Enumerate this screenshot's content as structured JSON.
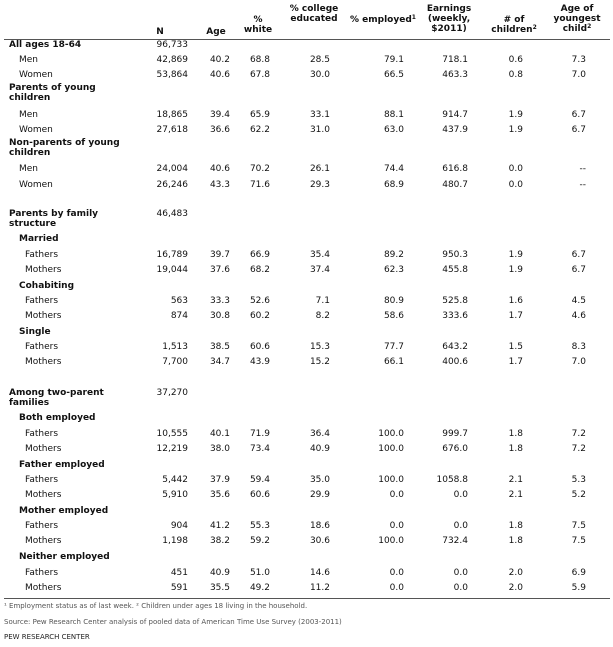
{
  "headers": {
    "n": "N",
    "age": "Age",
    "white": "% white",
    "college": "% college educated",
    "employed": "% employed",
    "employed_sup": "1",
    "earnings": "Earnings (weekly, $2011)",
    "children": "# of children",
    "children_sup": "2",
    "youngest": "Age of youngest child",
    "youngest_sup": "2"
  },
  "rows": [
    {
      "label": "All ages 18-64",
      "bold": true,
      "indent": 0,
      "n": "96,733"
    },
    {
      "label": "Men",
      "bold": false,
      "indent": 1,
      "n": "42,869",
      "age": "40.2",
      "white": "68.8",
      "college": "28.5",
      "employed": "79.1",
      "earnings": "718.1",
      "children": "0.6",
      "youngest": "7.3"
    },
    {
      "label": "Women",
      "bold": false,
      "indent": 1,
      "n": "53,864",
      "age": "40.6",
      "white": "67.8",
      "college": "30.0",
      "employed": "66.5",
      "earnings": "463.3",
      "children": "0.8",
      "youngest": "7.0"
    },
    {
      "label": "Parents of young children",
      "bold": true,
      "indent": 0
    },
    {
      "label": "Men",
      "bold": false,
      "indent": 1,
      "n": "18,865",
      "age": "39.4",
      "white": "65.9",
      "college": "33.1",
      "employed": "88.1",
      "earnings": "914.7",
      "children": "1.9",
      "youngest": "6.7"
    },
    {
      "label": "Women",
      "bold": false,
      "indent": 1,
      "n": "27,618",
      "age": "36.6",
      "white": "62.2",
      "college": "31.0",
      "employed": "63.0",
      "earnings": "437.9",
      "children": "1.9",
      "youngest": "6.7"
    },
    {
      "label": "Non-parents of young children",
      "bold": true,
      "indent": 0
    },
    {
      "label": "Men",
      "bold": false,
      "indent": 1,
      "n": "24,004",
      "age": "40.6",
      "white": "70.2",
      "college": "26.1",
      "employed": "74.4",
      "earnings": "616.8",
      "children": "0.0",
      "youngest": "--"
    },
    {
      "label": "Women",
      "bold": false,
      "indent": 1,
      "n": "26,246",
      "age": "43.3",
      "white": "71.6",
      "college": "29.3",
      "employed": "68.9",
      "earnings": "480.7",
      "children": "0.0",
      "youngest": "--"
    },
    {
      "label": "Parents by family structure",
      "bold": true,
      "indent": 0,
      "n": "46,483"
    },
    {
      "label": "Married",
      "bold": true,
      "indent": 1
    },
    {
      "label": "Fathers",
      "bold": false,
      "indent": 2,
      "n": "16,789",
      "age": "39.7",
      "white": "66.9",
      "college": "35.4",
      "employed": "89.2",
      "earnings": "950.3",
      "children": "1.9",
      "youngest": "6.7"
    },
    {
      "label": "Mothers",
      "bold": false,
      "indent": 2,
      "n": "19,044",
      "age": "37.6",
      "white": "68.2",
      "college": "37.4",
      "employed": "62.3",
      "earnings": "455.8",
      "children": "1.9",
      "youngest": "6.7"
    },
    {
      "label": "Cohabiting",
      "bold": true,
      "indent": 1
    },
    {
      "label": "Fathers",
      "bold": false,
      "indent": 2,
      "n": "563",
      "age": "33.3",
      "white": "52.6",
      "college": "7.1",
      "employed": "80.9",
      "earnings": "525.8",
      "children": "1.6",
      "youngest": "4.5"
    },
    {
      "label": "Mothers",
      "bold": false,
      "indent": 2,
      "n": "874",
      "age": "30.8",
      "white": "60.2",
      "college": "8.2",
      "employed": "58.6",
      "earnings": "333.6",
      "children": "1.7",
      "youngest": "4.6"
    },
    {
      "label": "Single",
      "bold": true,
      "indent": 1
    },
    {
      "label": "Fathers",
      "bold": false,
      "indent": 2,
      "n": "1,513",
      "age": "38.5",
      "white": "60.6",
      "college": "15.3",
      "employed": "77.7",
      "earnings": "643.2",
      "children": "1.5",
      "youngest": "8.3"
    },
    {
      "label": "Mothers",
      "bold": false,
      "indent": 2,
      "n": "7,700",
      "age": "34.7",
      "white": "43.9",
      "college": "15.2",
      "employed": "66.1",
      "earnings": "400.6",
      "children": "1.7",
      "youngest": "7.0"
    },
    {
      "label": "Among two-parent families",
      "bold": true,
      "indent": 0,
      "n": "37,270"
    },
    {
      "label": "Both employed",
      "bold": true,
      "indent": 1
    },
    {
      "label": "Fathers",
      "bold": false,
      "indent": 2,
      "n": "10,555",
      "age": "40.1",
      "white": "71.9",
      "college": "36.4",
      "employed": "100.0",
      "earnings": "999.7",
      "children": "1.8",
      "youngest": "7.2"
    },
    {
      "label": "Mothers",
      "bold": false,
      "indent": 2,
      "n": "12,219",
      "age": "38.0",
      "white": "73.4",
      "college": "40.9",
      "employed": "100.0",
      "earnings": "676.0",
      "children": "1.8",
      "youngest": "7.2"
    },
    {
      "label": "Father employed",
      "bold": true,
      "indent": 1
    },
    {
      "label": "Fathers",
      "bold": false,
      "indent": 2,
      "n": "5,442",
      "age": "37.9",
      "white": "59.4",
      "college": "35.0",
      "employed": "100.0",
      "earnings": "1058.8",
      "children": "2.1",
      "youngest": "5.3"
    },
    {
      "label": "Mothers",
      "bold": false,
      "indent": 2,
      "n": "5,910",
      "age": "35.6",
      "white": "60.6",
      "college": "29.9",
      "employed": "0.0",
      "earnings": "0.0",
      "children": "2.1",
      "youngest": "5.2"
    },
    {
      "label": "Mother employed",
      "bold": true,
      "indent": 1
    },
    {
      "label": "Fathers",
      "bold": false,
      "indent": 2,
      "n": "904",
      "age": "41.2",
      "white": "55.3",
      "college": "18.6",
      "employed": "0.0",
      "earnings": "0.0",
      "children": "1.8",
      "youngest": "7.5"
    },
    {
      "label": "Mothers",
      "bold": false,
      "indent": 2,
      "n": "1,198",
      "age": "38.2",
      "white": "59.2",
      "college": "30.6",
      "employed": "100.0",
      "earnings": "732.4",
      "children": "1.8",
      "youngest": "7.5"
    },
    {
      "label": "Neither employed",
      "bold": true,
      "indent": 1
    },
    {
      "label": "Fathers",
      "bold": false,
      "indent": 2,
      "n": "451",
      "age": "40.9",
      "white": "51.0",
      "college": "14.6",
      "employed": "0.0",
      "earnings": "0.0",
      "children": "2.0",
      "youngest": "6.9"
    },
    {
      "label": "Mothers",
      "bold": false,
      "indent": 2,
      "n": "591",
      "age": "35.5",
      "white": "49.2",
      "college": "11.2",
      "employed": "0.0",
      "earnings": "0.0",
      "children": "2.0",
      "youngest": "5.9"
    }
  ],
  "footnotes": {
    "note1": "¹ Employment status as of last week. ² Children under ages 18 living in the household.",
    "source": "Source:  Pew Research Center analysis of pooled data of American Time Use Survey (2003-2011)",
    "credit": "PEW RESEARCH CENTER"
  }
}
